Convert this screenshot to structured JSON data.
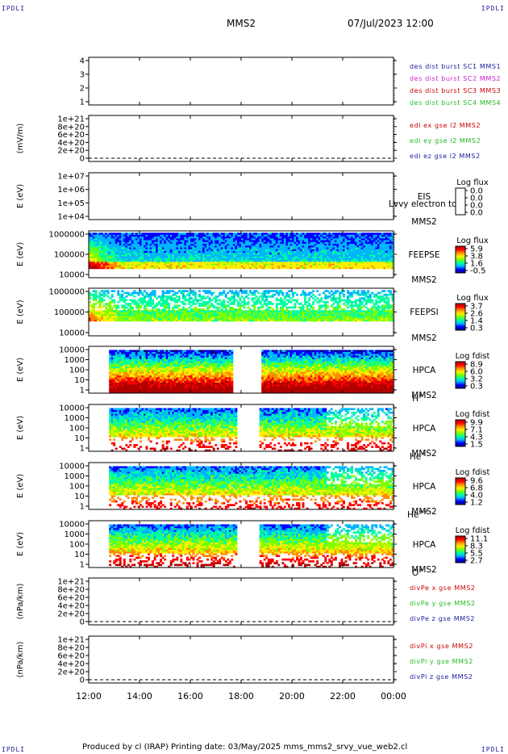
{
  "header": {
    "corner_left": "IPDLI",
    "corner_right": "IPDLI",
    "corner_bottom_left": "IPDLI",
    "corner_bottom_right": "IPDLI",
    "title": "MMS2",
    "datetime": "07/Jul/2023 12:00"
  },
  "footer": {
    "text": "Produced by cl (IRAP)   Printing date: 03/May/2025   mms_mms2_srvy_vue_web2.cl"
  },
  "colors": {
    "blue": "#1a1aa0",
    "magenta": "#cc22cc",
    "red": "#cc0000",
    "green": "#22bb22",
    "spectrogram_map": [
      "#000080",
      "#0000ff",
      "#00b4ff",
      "#00ffa0",
      "#7cff00",
      "#ffee00",
      "#ff8c00",
      "#ff0000",
      "#b00000"
    ]
  },
  "chart_data": {
    "type": "heatmap",
    "x_ticks": [
      "12:00",
      "14:00",
      "16:00",
      "18:00",
      "20:00",
      "22:00",
      "00:00"
    ],
    "x_range_hours": [
      12,
      24
    ],
    "panels": [
      {
        "id": "fields",
        "kind": "lines",
        "ylabel": "",
        "y_ticks": [
          "4",
          "3",
          "2",
          "1"
        ],
        "legend": [
          {
            "text": "des dist burst SC1 MMS1",
            "color": "#1a1aa0"
          },
          {
            "text": "des dist burst SC2 MMS2",
            "color": "#cc22cc"
          },
          {
            "text": "des dist burst SC3 MMS3",
            "color": "#cc0000"
          },
          {
            "text": "des dist burst SC4 MMS4",
            "color": "#22bb22"
          }
        ]
      },
      {
        "id": "edi",
        "kind": "lines",
        "ylabel": "(mV/m)",
        "zero_line": true,
        "y_ticks": [
          "1e+21",
          "8e+20",
          "6e+20",
          "4e+20",
          "2e+20",
          "0"
        ],
        "legend": [
          {
            "text": "edi ex gse l2 MMS2",
            "color": "#cc0000"
          },
          {
            "text": "edi ey gse l2 MMS2",
            "color": "#22bb22"
          },
          {
            "text": "edi ez gse l2 MMS2",
            "color": "#1a1aa0"
          }
        ]
      },
      {
        "id": "eis",
        "kind": "spectrogram",
        "ylabel": "E (eV)",
        "y_ticks": [
          "1e+07",
          "1e+06",
          "1e+05",
          "1e+04"
        ],
        "instrument": "EIS",
        "spacecraft": "MMS2",
        "species": "",
        "overlay_text": "Lvvy electron to",
        "colorbar_title": "Log flux",
        "colorbar_ticks": [
          "0.0",
          "0.0",
          "0.0",
          "0.0"
        ],
        "empty": true
      },
      {
        "id": "feepse",
        "kind": "spectrogram",
        "ylabel": "E (eV)",
        "y_ticks": [
          "1000000",
          "100000",
          "10000"
        ],
        "instrument": "FEEPSE",
        "spacecraft": "MMS2",
        "species": "",
        "colorbar_title": "Log flux",
        "colorbar_ticks": [
          "5.9",
          "3.8",
          "1.6",
          "-0.5"
        ],
        "style": "electrons"
      },
      {
        "id": "feepsi",
        "kind": "spectrogram",
        "ylabel": "E (eV)",
        "y_ticks": [
          "1000000",
          "100000",
          "10000"
        ],
        "instrument": "FEEPSI",
        "spacecraft": "MMS2",
        "species": "",
        "colorbar_title": "Log flux",
        "colorbar_ticks": [
          "3.7",
          "2.6",
          "1.4",
          "0.3"
        ],
        "style": "ions"
      },
      {
        "id": "hpca_h",
        "kind": "spectrogram",
        "ylabel": "E (eV)",
        "y_ticks": [
          "10000",
          "1000",
          "100",
          "10",
          "1"
        ],
        "instrument": "HPCA",
        "spacecraft": "MMS2",
        "species": "H",
        "species_sup": "+",
        "colorbar_title": "Log fdist",
        "colorbar_ticks": [
          "8.9",
          "6.0",
          "3.2",
          "0.3"
        ],
        "style": "hplus",
        "data_start_hour": 12.8
      },
      {
        "id": "hpca_he",
        "kind": "spectrogram",
        "ylabel": "E (eV)",
        "y_ticks": [
          "10000",
          "1000",
          "100",
          "10",
          "1"
        ],
        "instrument": "HPCA",
        "spacecraft": "MMS2",
        "species": "He",
        "species_sup": "+",
        "colorbar_title": "Log fdist",
        "colorbar_ticks": [
          "9.9",
          "7.1",
          "4.3",
          "1.5"
        ],
        "style": "heplus",
        "data_start_hour": 12.8
      },
      {
        "id": "hpca_hepp",
        "kind": "spectrogram",
        "ylabel": "E (eV)",
        "y_ticks": [
          "10000",
          "1000",
          "100",
          "10",
          "1"
        ],
        "instrument": "HPCA",
        "spacecraft": "MMS2",
        "species": "He",
        "species_sup": "++",
        "colorbar_title": "Log fdist",
        "colorbar_ticks": [
          "9.6",
          "6.8",
          "4.0",
          "1.2"
        ],
        "style": "hepp",
        "data_start_hour": 12.8
      },
      {
        "id": "hpca_o",
        "kind": "spectrogram",
        "ylabel": "E (eV)",
        "y_ticks": [
          "10000",
          "1000",
          "100",
          "10",
          "1"
        ],
        "instrument": "HPCA",
        "spacecraft": "MMS2",
        "species": "O",
        "species_sup": "+",
        "colorbar_title": "Log fdist",
        "colorbar_ticks": [
          "11.1",
          "8.3",
          "5.5",
          "2.7"
        ],
        "style": "oplus",
        "data_start_hour": 12.8
      },
      {
        "id": "divpe",
        "kind": "lines",
        "ylabel": "(nPa/km)",
        "zero_line": true,
        "y_ticks": [
          "1e+21",
          "8e+20",
          "6e+20",
          "4e+20",
          "2e+20",
          "0"
        ],
        "legend": [
          {
            "text": "divPe x gse MMS2",
            "color": "#cc0000"
          },
          {
            "text": "divPe y gse MMS2",
            "color": "#22bb22"
          },
          {
            "text": "divPe z gse MMS2",
            "color": "#1a1aa0"
          }
        ]
      },
      {
        "id": "divpi",
        "kind": "lines",
        "ylabel": "(nPa/km)",
        "zero_line": true,
        "y_ticks": [
          "1e+21",
          "8e+20",
          "6e+20",
          "4e+20",
          "2e+20",
          "0"
        ],
        "legend": [
          {
            "text": "divPi x gse MMS2",
            "color": "#cc0000"
          },
          {
            "text": "divPi y gse MMS2",
            "color": "#22bb22"
          },
          {
            "text": "divPi z gse MMS2",
            "color": "#1a1aa0"
          }
        ]
      }
    ]
  }
}
